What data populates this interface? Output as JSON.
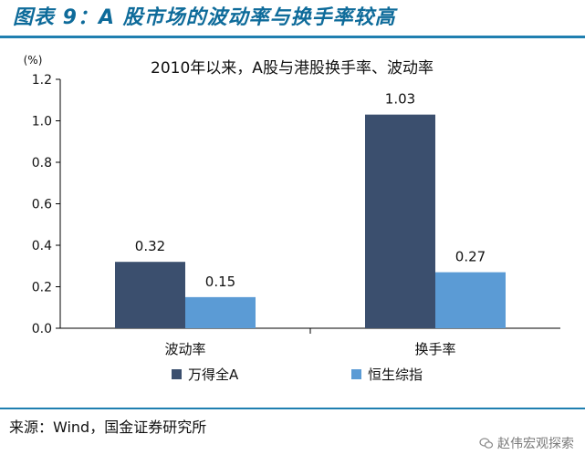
{
  "figure": {
    "title": "图表 9：A 股市场的波动率与换手率较高",
    "source": "来源：Wind，国金证券研究所",
    "watermark": "赵伟宏观探索"
  },
  "chart_data": {
    "type": "bar",
    "title": "2010年以来，A股与港股换手率、波动率",
    "y_unit": "(%)",
    "categories": [
      "波动率",
      "换手率"
    ],
    "series": [
      {
        "name": "万得全A",
        "values": [
          0.32,
          1.03
        ],
        "color": "#3b4f6e"
      },
      {
        "name": "恒生综指",
        "values": [
          0.15,
          0.27
        ],
        "color": "#5b9bd5"
      }
    ],
    "ylim": [
      0,
      1.2
    ],
    "yticks": [
      "0.0",
      "0.2",
      "0.4",
      "0.6",
      "0.8",
      "1.0",
      "1.2"
    ],
    "data_labels": [
      [
        "0.32",
        "1.03"
      ],
      [
        "0.15",
        "0.27"
      ]
    ],
    "grid": false,
    "legend_position": "bottom"
  }
}
